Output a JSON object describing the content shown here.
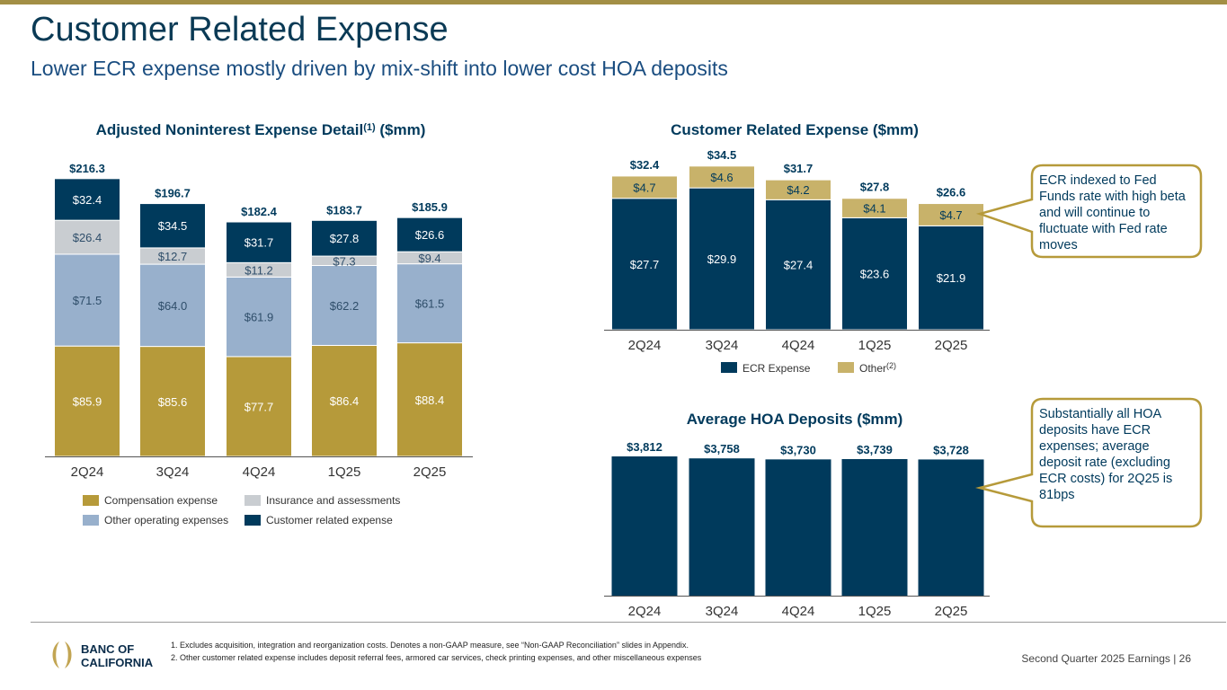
{
  "header": {
    "title": "Customer Related Expense",
    "subtitle": "Lower ECR expense mostly driven by mix-shift into lower cost HOA deposits"
  },
  "colors": {
    "compensation": "#b69a3a",
    "other_operating": "#98b0cc",
    "insurance": "#c9cdd1",
    "customer_related": "#003a5c",
    "ecr": "#003a5c",
    "other": "#c8b26a",
    "callout_border": "#b69a3a"
  },
  "chart_data": [
    {
      "type": "bar",
      "stacked": true,
      "title": "Adjusted Noninterest Expense Detail",
      "title_sup": "(1)",
      "title_unit": "($mm)",
      "categories": [
        "2Q24",
        "3Q24",
        "4Q24",
        "1Q25",
        "2Q25"
      ],
      "totals": [
        "$216.3",
        "$196.7",
        "$182.4",
        "$183.7",
        "$185.9"
      ],
      "series": [
        {
          "name": "Compensation expense",
          "color": "#b69a3a",
          "values": [
            85.9,
            85.6,
            77.7,
            86.4,
            88.4
          ],
          "labels": [
            "$85.9",
            "$85.6",
            "$77.7",
            "$86.4",
            "$88.4"
          ]
        },
        {
          "name": "Other operating expenses",
          "color": "#98b0cc",
          "values": [
            71.5,
            64.0,
            61.9,
            62.2,
            61.5
          ],
          "labels": [
            "$71.5",
            "$64.0",
            "$61.9",
            "$62.2",
            "$61.5"
          ]
        },
        {
          "name": "Insurance and assessments",
          "color": "#c9cdd1",
          "values": [
            26.4,
            12.7,
            11.2,
            7.3,
            9.4
          ],
          "labels": [
            "$26.4",
            "$12.7",
            "$11.2",
            "$7.3",
            "$9.4"
          ]
        },
        {
          "name": "Customer related expense",
          "color": "#003a5c",
          "values": [
            32.4,
            34.5,
            31.7,
            27.8,
            26.6
          ],
          "labels": [
            "$32.4",
            "$34.5",
            "$31.7",
            "$27.8",
            "$26.6"
          ]
        }
      ],
      "legend": [
        "Compensation expense",
        "Insurance and assessments",
        "Other operating expenses",
        "Customer related expense"
      ]
    },
    {
      "type": "bar",
      "stacked": true,
      "title": "Customer Related Expense ($mm)",
      "categories": [
        "2Q24",
        "3Q24",
        "4Q24",
        "1Q25",
        "2Q25"
      ],
      "totals": [
        "$32.4",
        "$34.5",
        "$31.7",
        "$27.8",
        "$26.6"
      ],
      "series": [
        {
          "name": "ECR Expense",
          "color": "#003a5c",
          "values": [
            27.7,
            29.9,
            27.4,
            23.6,
            21.9
          ],
          "labels": [
            "$27.7",
            "$29.9",
            "$27.4",
            "$23.6",
            "$21.9"
          ]
        },
        {
          "name": "Other",
          "name_sup": "(2)",
          "color": "#c8b26a",
          "values": [
            4.7,
            4.6,
            4.2,
            4.1,
            4.7
          ],
          "labels": [
            "$4.7",
            "$4.6",
            "$4.2",
            "$4.1",
            "$4.7"
          ]
        }
      ]
    },
    {
      "type": "bar",
      "title": "Average HOA Deposits ($mm)",
      "categories": [
        "2Q24",
        "3Q24",
        "4Q24",
        "1Q25",
        "2Q25"
      ],
      "values": [
        3812,
        3758,
        3730,
        3739,
        3728
      ],
      "labels": [
        "$3,812",
        "$3,758",
        "$3,730",
        "$3,739",
        "$3,728"
      ],
      "color": "#003a5c"
    }
  ],
  "callouts": [
    "ECR indexed to Fed Funds rate with high beta and will continue to fluctuate with Fed rate moves",
    "Substantially all HOA deposits have ECR expenses; average deposit rate (excluding ECR costs) for 2Q25 is 81bps"
  ],
  "footer": {
    "logo": "BANC OF CALIFORNIA",
    "logo_line1": "BANC OF",
    "logo_line2": "CALIFORNIA",
    "notes": [
      "1.  Excludes acquisition, integration and reorganization costs. Denotes a non-GAAP measure, see “Non-GAAP Reconciliation” slides in Appendix.",
      "2.  Other customer related expense includes deposit referral fees, armored car services, check printing expenses, and other miscellaneous expenses"
    ],
    "page": "Second Quarter 2025 Earnings |  26"
  }
}
